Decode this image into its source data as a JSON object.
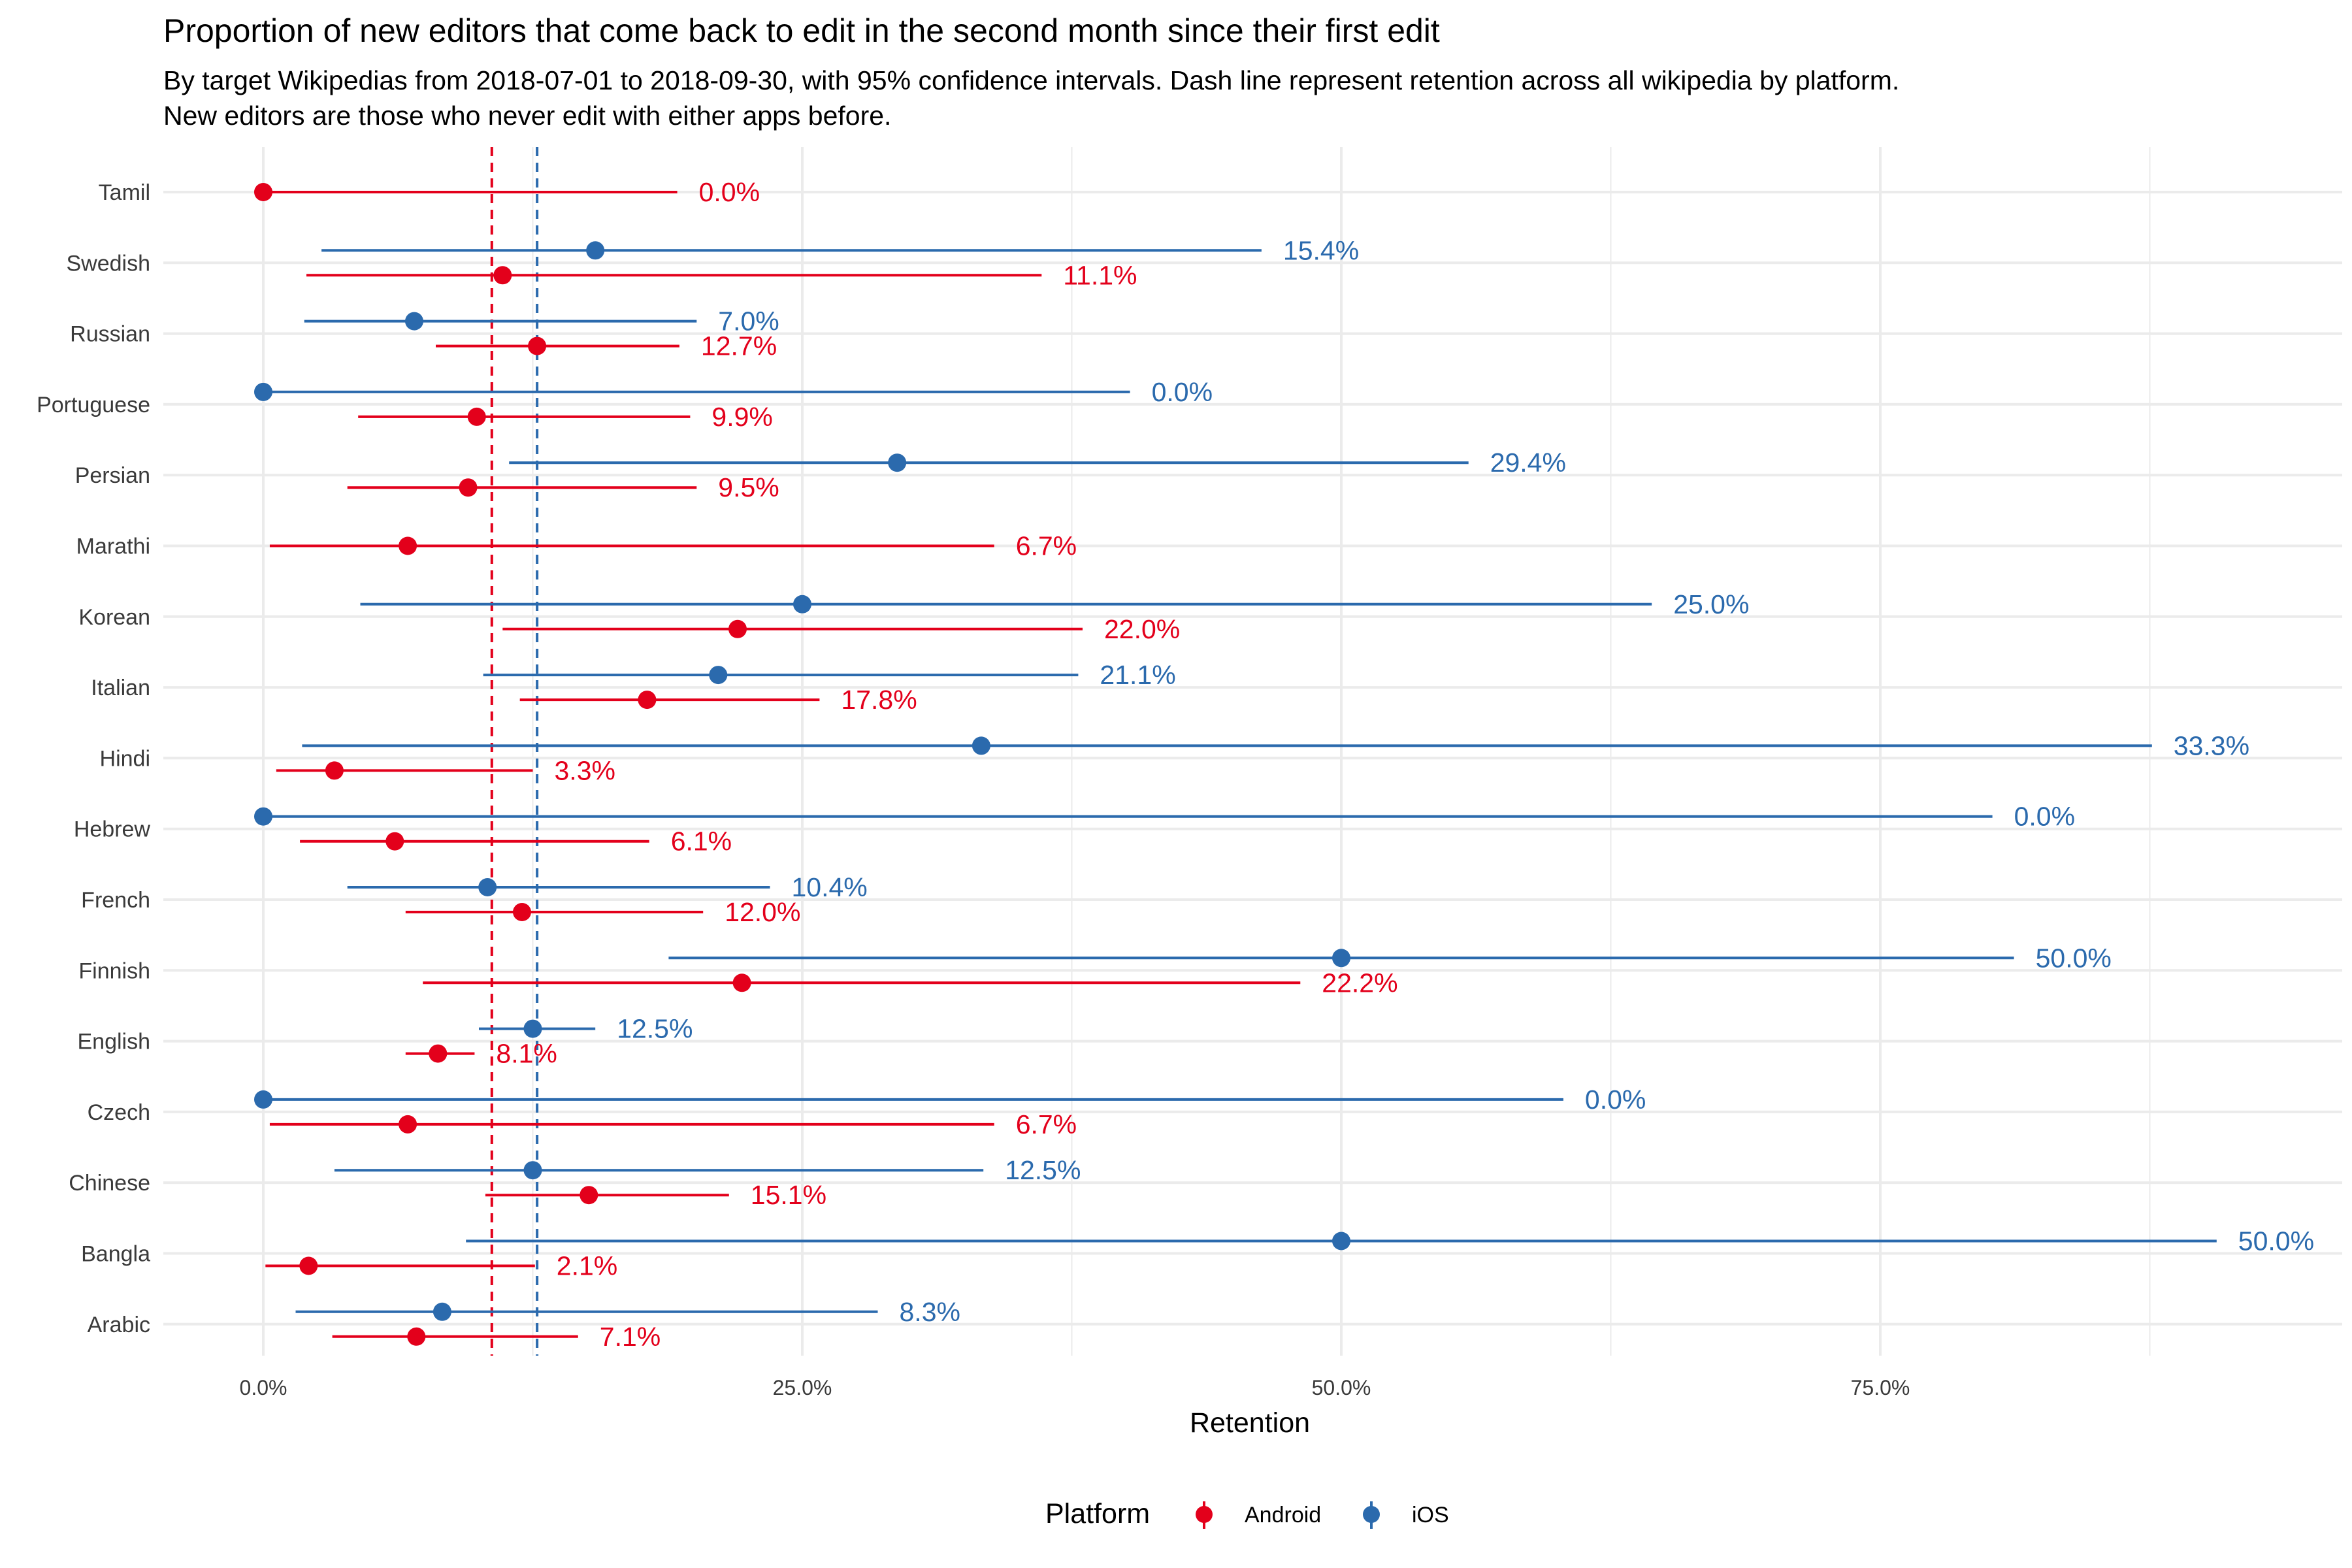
{
  "chart_data": {
    "type": "dot-interval",
    "title": "Proportion of new editors that come back to edit in the second month since their first edit",
    "subtitle": [
      "By target Wikipedias from 2018-07-01 to 2018-09-30, with 95% confidence intervals. Dash line represent retention across all wikipedia by platform.",
      "New editors are those who never edit with either apps before."
    ],
    "xlabel": "Retention",
    "x_ticks": [
      0,
      0.25,
      0.5,
      0.75
    ],
    "x_tick_labels": [
      "0.0%",
      "25.0%",
      "50.0%",
      "75.0%"
    ],
    "xlim": [
      -0.04,
      0.96
    ],
    "grid": true,
    "legend": {
      "title": "Platform",
      "position": "bottom",
      "entries": [
        "Android",
        "iOS"
      ]
    },
    "colors": {
      "Android": "#e3001b",
      "iOS": "#2b6aad"
    },
    "reference_lines": [
      {
        "platform": "Android",
        "x": 0.106
      },
      {
        "platform": "iOS",
        "x": 0.127
      }
    ],
    "categories": [
      "Tamil",
      "Swedish",
      "Russian",
      "Portuguese",
      "Persian",
      "Marathi",
      "Korean",
      "Italian",
      "Hindi",
      "Hebrew",
      "French",
      "Finnish",
      "English",
      "Czech",
      "Chinese",
      "Bangla",
      "Arabic"
    ],
    "series": [
      {
        "name": "Android",
        "points": [
          {
            "category": "Tamil",
            "value": 0.0,
            "lo": 0.0,
            "hi": 0.192,
            "label": "0.0%"
          },
          {
            "category": "Swedish",
            "value": 0.111,
            "lo": 0.02,
            "hi": 0.361,
            "label": "11.1%"
          },
          {
            "category": "Russian",
            "value": 0.127,
            "lo": 0.08,
            "hi": 0.193,
            "label": "12.7%"
          },
          {
            "category": "Portuguese",
            "value": 0.099,
            "lo": 0.044,
            "hi": 0.198,
            "label": "9.9%"
          },
          {
            "category": "Persian",
            "value": 0.095,
            "lo": 0.039,
            "hi": 0.201,
            "label": "9.5%"
          },
          {
            "category": "Marathi",
            "value": 0.067,
            "lo": 0.003,
            "hi": 0.339,
            "label": "6.7%"
          },
          {
            "category": "Korean",
            "value": 0.22,
            "lo": 0.111,
            "hi": 0.38,
            "label": "22.0%"
          },
          {
            "category": "Italian",
            "value": 0.178,
            "lo": 0.119,
            "hi": 0.258,
            "label": "17.8%"
          },
          {
            "category": "Hindi",
            "value": 0.033,
            "lo": 0.006,
            "hi": 0.125,
            "label": "3.3%"
          },
          {
            "category": "Hebrew",
            "value": 0.061,
            "lo": 0.017,
            "hi": 0.179,
            "label": "6.1%"
          },
          {
            "category": "French",
            "value": 0.12,
            "lo": 0.066,
            "hi": 0.204,
            "label": "12.0%"
          },
          {
            "category": "Finnish",
            "value": 0.222,
            "lo": 0.074,
            "hi": 0.481,
            "label": "22.2%"
          },
          {
            "category": "English",
            "value": 0.081,
            "lo": 0.066,
            "hi": 0.098,
            "label": "8.1%"
          },
          {
            "category": "Czech",
            "value": 0.067,
            "lo": 0.003,
            "hi": 0.339,
            "label": "6.7%"
          },
          {
            "category": "Chinese",
            "value": 0.151,
            "lo": 0.103,
            "hi": 0.216,
            "label": "15.1%"
          },
          {
            "category": "Bangla",
            "value": 0.021,
            "lo": 0.001,
            "hi": 0.126,
            "label": "2.1%"
          },
          {
            "category": "Arabic",
            "value": 0.071,
            "lo": 0.032,
            "hi": 0.146,
            "label": "7.1%"
          }
        ]
      },
      {
        "name": "iOS",
        "points": [
          {
            "category": "Swedish",
            "value": 0.154,
            "lo": 0.027,
            "hi": 0.463,
            "label": "15.4%"
          },
          {
            "category": "Russian",
            "value": 0.07,
            "lo": 0.019,
            "hi": 0.201,
            "label": "7.0%"
          },
          {
            "category": "Portuguese",
            "value": 0.0,
            "lo": 0.0,
            "hi": 0.402,
            "label": "0.0%"
          },
          {
            "category": "Persian",
            "value": 0.294,
            "lo": 0.114,
            "hi": 0.559,
            "label": "29.4%"
          },
          {
            "category": "Korean",
            "value": 0.25,
            "lo": 0.045,
            "hi": 0.644,
            "label": "25.0%"
          },
          {
            "category": "Italian",
            "value": 0.211,
            "lo": 0.102,
            "hi": 0.378,
            "label": "21.1%"
          },
          {
            "category": "Hindi",
            "value": 0.333,
            "lo": 0.018,
            "hi": 0.876,
            "label": "33.3%"
          },
          {
            "category": "Hebrew",
            "value": 0.0,
            "lo": 0.0,
            "hi": 0.802,
            "label": "0.0%"
          },
          {
            "category": "French",
            "value": 0.104,
            "lo": 0.039,
            "hi": 0.235,
            "label": "10.4%"
          },
          {
            "category": "Finnish",
            "value": 0.5,
            "lo": 0.188,
            "hi": 0.812,
            "label": "50.0%"
          },
          {
            "category": "English",
            "value": 0.125,
            "lo": 0.1,
            "hi": 0.154,
            "label": "12.5%"
          },
          {
            "category": "Czech",
            "value": 0.0,
            "lo": 0.0,
            "hi": 0.603,
            "label": "0.0%"
          },
          {
            "category": "Chinese",
            "value": 0.125,
            "lo": 0.033,
            "hi": 0.334,
            "label": "12.5%"
          },
          {
            "category": "Bangla",
            "value": 0.5,
            "lo": 0.094,
            "hi": 0.906,
            "label": "50.0%"
          },
          {
            "category": "Arabic",
            "value": 0.083,
            "lo": 0.015,
            "hi": 0.285,
            "label": "8.3%"
          }
        ]
      }
    ]
  }
}
